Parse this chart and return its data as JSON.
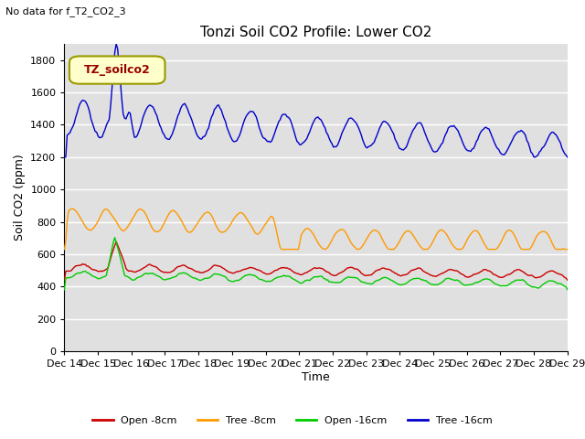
{
  "title": "Tonzi Soil CO2 Profile: Lower CO2",
  "subtitle": "No data for f_T2_CO2_3",
  "ylabel": "Soil CO2 (ppm)",
  "xlabel": "Time",
  "ylim": [
    0,
    1900
  ],
  "yticks": [
    0,
    200,
    400,
    600,
    800,
    1000,
    1200,
    1400,
    1600,
    1800
  ],
  "fig_bg_color": "#ffffff",
  "plot_bg_color": "#e0e0e0",
  "legend_label": "TZ_soilco2",
  "legend_box_facecolor": "#ffffcc",
  "legend_box_edgecolor": "#999900",
  "legend_text_color": "#990000",
  "series_labels": [
    "Open -8cm",
    "Tree -8cm",
    "Open -16cm",
    "Tree -16cm"
  ],
  "series_colors": [
    "#cc0000",
    "#ff9900",
    "#00cc00",
    "#0000cc"
  ],
  "x_start_day": 14,
  "x_end_day": 29,
  "x_tick_days": [
    14,
    15,
    16,
    17,
    18,
    19,
    20,
    21,
    22,
    23,
    24,
    25,
    26,
    27,
    28,
    29
  ]
}
